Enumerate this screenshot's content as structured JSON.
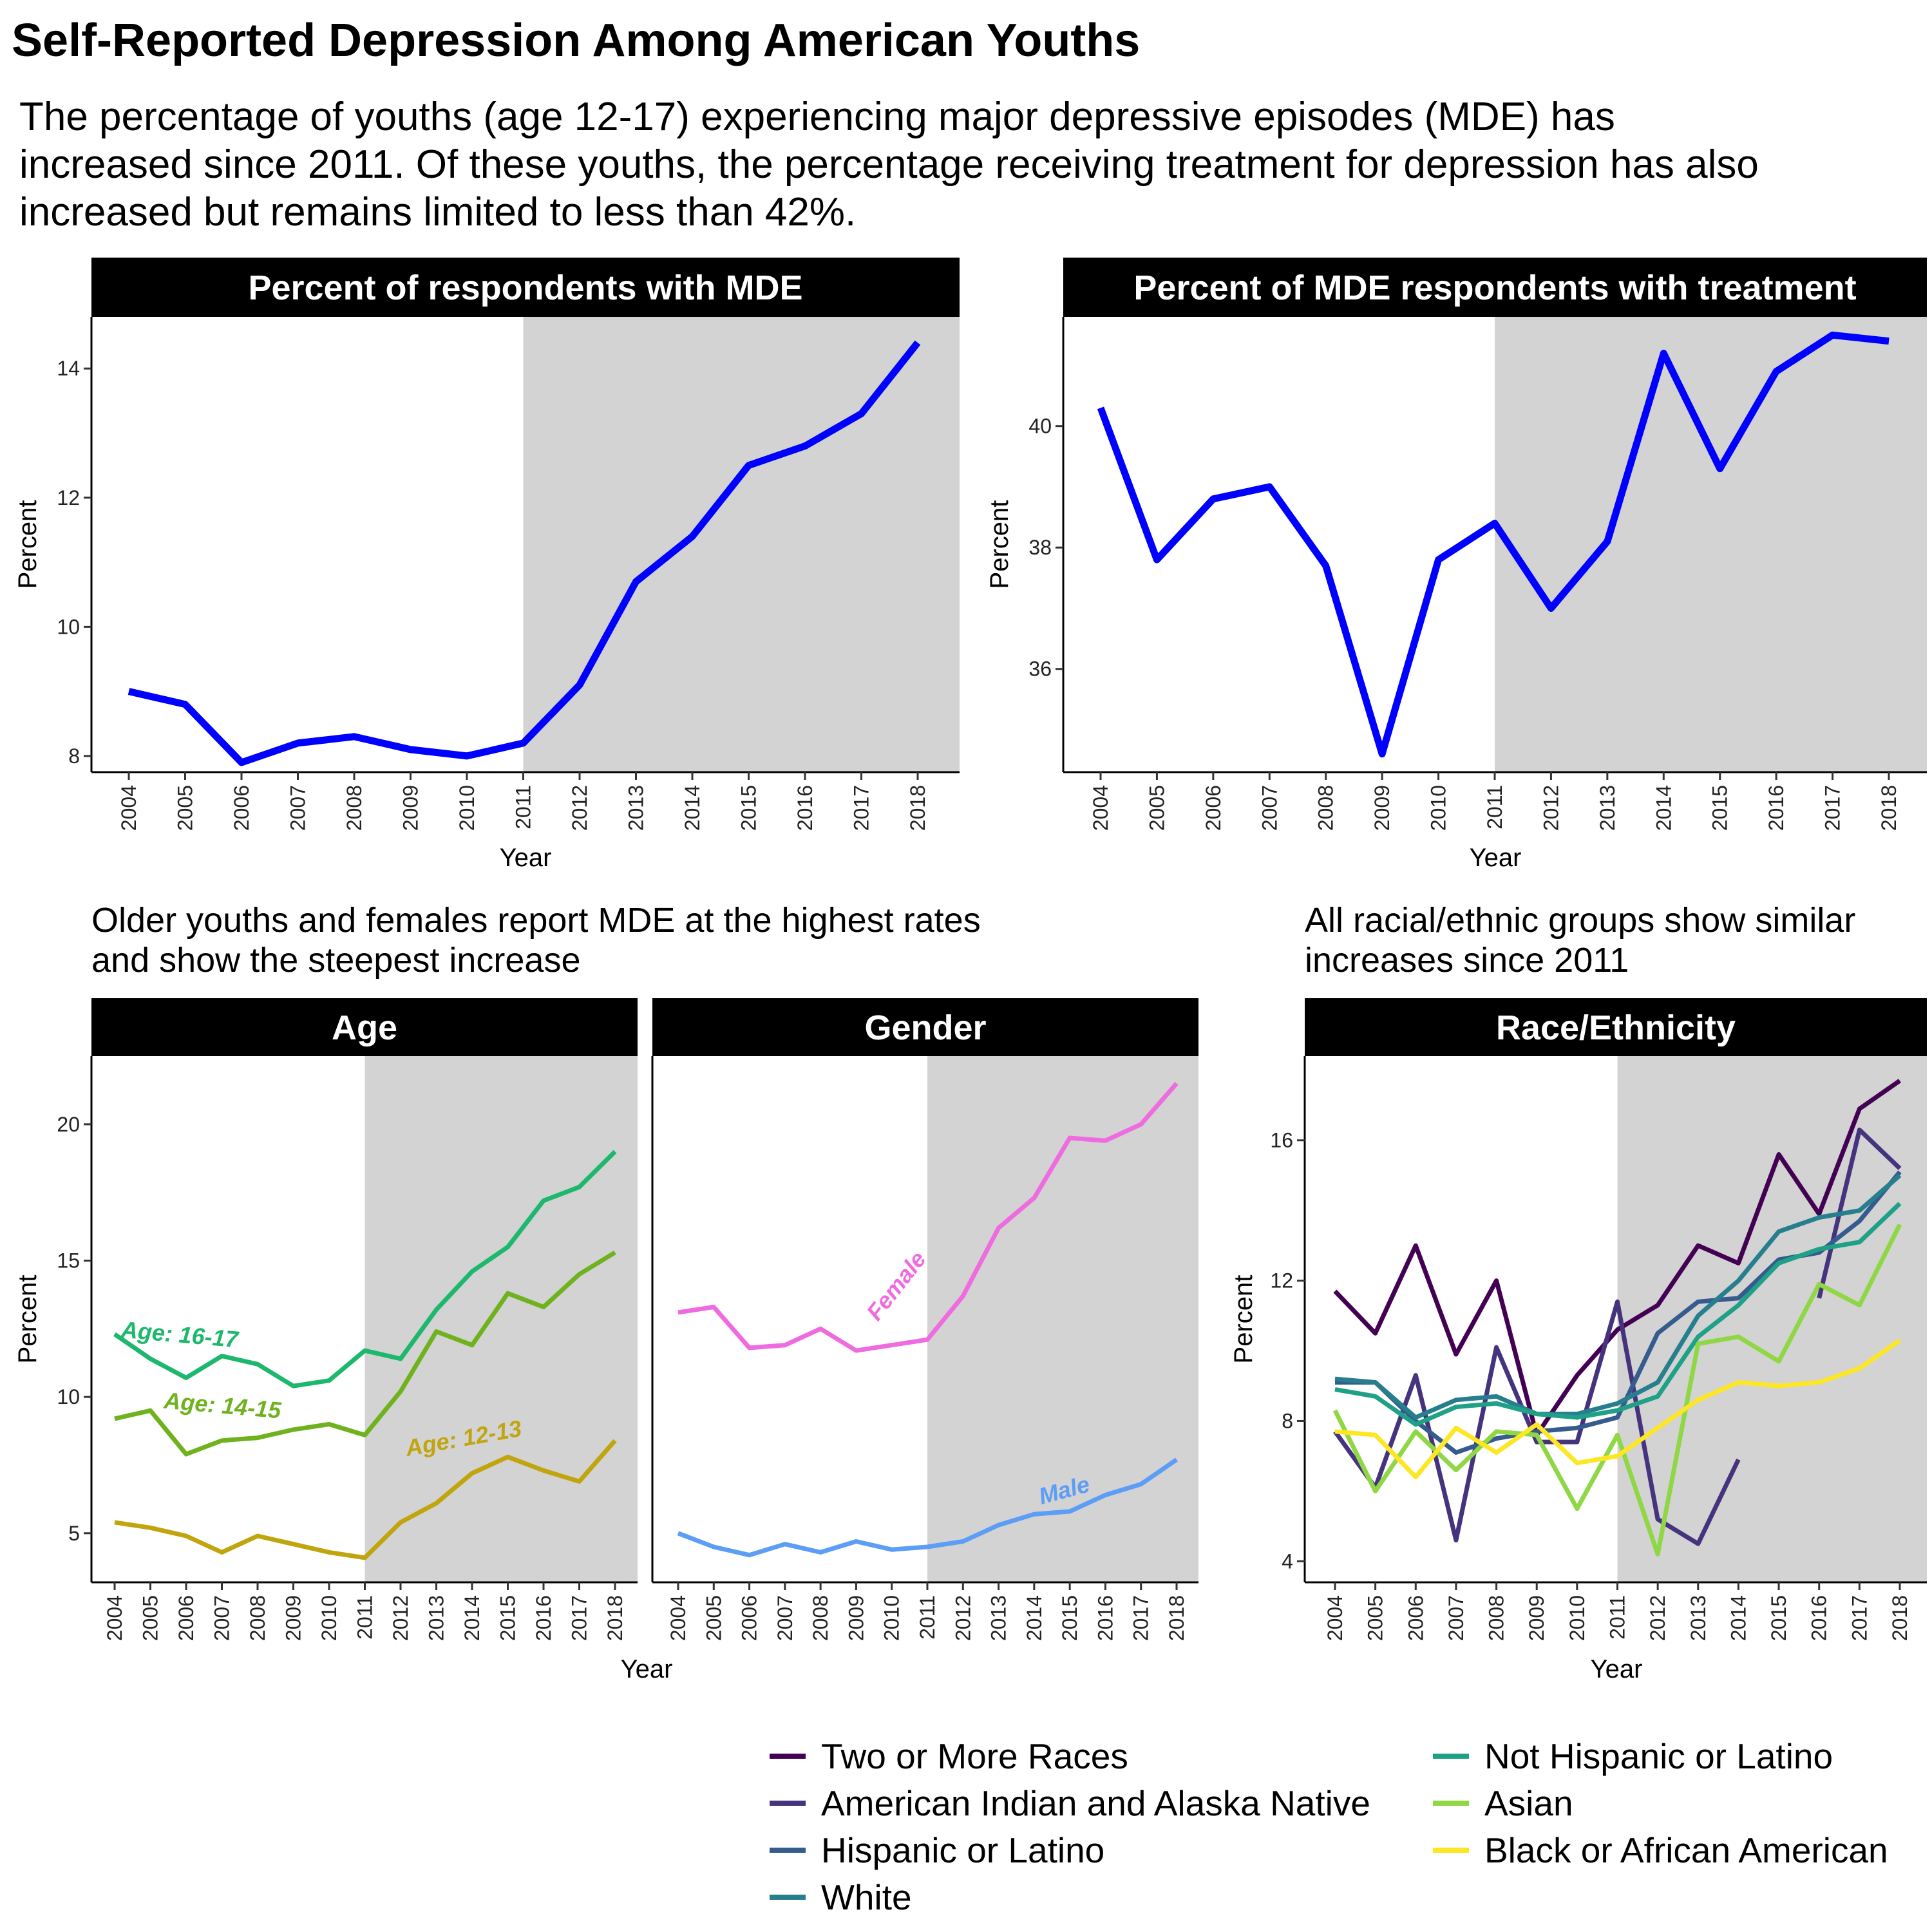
{
  "title": "Self-Reported Depression Among American Youths",
  "subtitle_lines": [
    "The percentage of youths (age 12-17) experiencing major depressive episodes (MDE) has",
    "increased since 2011. Of these youths, the percentage receiving treatment for depression has also",
    "increased but remains limited to less than 42%."
  ],
  "captions": {
    "bottom_left": [
      "Older youths and females report MDE at the highest rates",
      "and show the steepest increase"
    ],
    "bottom_right": [
      "All racial/ethnic groups show similar",
      "increases since 2011"
    ]
  },
  "colors": {
    "mde": "#0000ff",
    "shade": "#d3d3d3",
    "strip": "#000000",
    "age_16_17": "#1db86d",
    "age_14_15": "#6fb21e",
    "age_12_13": "#c0a50e",
    "female": "#ef6be0",
    "male": "#5c9df5"
  },
  "chart_data": [
    {
      "id": "mde",
      "type": "line",
      "title": "Percent of respondents with MDE",
      "xlabel": "Year",
      "ylabel": "Percent",
      "shade_from": 2011,
      "x": [
        2004,
        2005,
        2006,
        2007,
        2008,
        2009,
        2010,
        2011,
        2012,
        2013,
        2014,
        2015,
        2016,
        2017,
        2018
      ],
      "ylim": [
        7.75,
        14.8
      ],
      "yticks": [
        8,
        10,
        12,
        14
      ],
      "series": [
        {
          "color": "#0000ff",
          "values": [
            9.0,
            8.8,
            7.9,
            8.2,
            8.3,
            8.1,
            8.0,
            8.2,
            9.1,
            10.7,
            11.4,
            12.5,
            12.8,
            13.3,
            14.4
          ]
        }
      ]
    },
    {
      "id": "treatment",
      "type": "line",
      "title": "Percent of MDE respondents with treatment",
      "xlabel": "Year",
      "ylabel": "Percent",
      "shade_from": 2011,
      "x": [
        2004,
        2005,
        2006,
        2007,
        2008,
        2009,
        2010,
        2011,
        2012,
        2013,
        2014,
        2015,
        2016,
        2017,
        2018
      ],
      "ylim": [
        34.3,
        41.8
      ],
      "yticks": [
        36,
        38,
        40
      ],
      "series": [
        {
          "color": "#0000ff",
          "values": [
            40.3,
            37.8,
            38.8,
            39.0,
            37.7,
            34.6,
            37.8,
            38.4,
            37.0,
            38.1,
            41.2,
            39.3,
            40.9,
            41.5,
            41.4
          ]
        }
      ]
    },
    {
      "id": "age",
      "type": "line",
      "title": "Age",
      "ylabel": "Percent",
      "shade_from": 2011,
      "x": [
        2004,
        2005,
        2006,
        2007,
        2008,
        2009,
        2010,
        2011,
        2012,
        2013,
        2014,
        2015,
        2016,
        2017,
        2018
      ],
      "ylim": [
        3.2,
        22.5
      ],
      "yticks": [
        5,
        10,
        15,
        20
      ],
      "series": [
        {
          "name": "Age: 16-17",
          "color": "#1db86d",
          "values": [
            12.3,
            11.4,
            10.7,
            11.5,
            11.2,
            10.4,
            10.6,
            11.7,
            11.4,
            13.2,
            14.6,
            15.5,
            17.2,
            17.7,
            19.0
          ]
        },
        {
          "name": "Age: 14-15",
          "color": "#6fb21e",
          "values": [
            9.2,
            9.5,
            7.9,
            8.4,
            8.5,
            8.8,
            9.0,
            8.6,
            10.2,
            12.4,
            11.9,
            13.8,
            13.3,
            14.5,
            15.3
          ]
        },
        {
          "name": "Age: 12-13",
          "color": "#c0a50e",
          "values": [
            5.4,
            5.2,
            4.9,
            4.3,
            4.9,
            4.6,
            4.3,
            4.1,
            5.4,
            6.1,
            7.2,
            7.8,
            7.3,
            6.9,
            8.4
          ]
        }
      ]
    },
    {
      "id": "gender",
      "type": "line",
      "title": "Gender",
      "xlabel": "Year",
      "shade_from": 2011,
      "x": [
        2004,
        2005,
        2006,
        2007,
        2008,
        2009,
        2010,
        2011,
        2012,
        2013,
        2014,
        2015,
        2016,
        2017,
        2018
      ],
      "ylim": [
        3.2,
        22.5
      ],
      "series": [
        {
          "name": "Female",
          "color": "#ef6be0",
          "values": [
            13.1,
            13.3,
            11.8,
            11.9,
            12.5,
            11.7,
            11.9,
            12.1,
            13.7,
            16.2,
            17.3,
            19.5,
            19.4,
            20.0,
            21.5
          ]
        },
        {
          "name": "Male",
          "color": "#5c9df5",
          "values": [
            5.0,
            4.5,
            4.2,
            4.6,
            4.3,
            4.7,
            4.4,
            4.5,
            4.7,
            5.3,
            5.7,
            5.8,
            6.4,
            6.8,
            7.7
          ]
        }
      ]
    },
    {
      "id": "race",
      "type": "line",
      "title": "Race/Ethnicity",
      "xlabel": "Year",
      "ylabel": "Percent",
      "shade_from": 2011,
      "x": [
        2004,
        2005,
        2006,
        2007,
        2008,
        2009,
        2010,
        2011,
        2012,
        2013,
        2014,
        2015,
        2016,
        2017,
        2018
      ],
      "ylim": [
        3.4,
        18.4
      ],
      "yticks": [
        4,
        8,
        12,
        16
      ],
      "legend_position": "bottom",
      "series": [
        {
          "name": "Two or More Races",
          "color": "#440154",
          "values": [
            11.7,
            10.5,
            13.0,
            9.9,
            12.0,
            7.6,
            9.3,
            10.6,
            11.3,
            13.0,
            12.5,
            15.6,
            13.9,
            16.9,
            17.7
          ]
        },
        {
          "name": "American Indian and Alaska Native",
          "color": "#46337e",
          "values": [
            7.7,
            6.1,
            9.3,
            4.6,
            10.1,
            7.4,
            7.4,
            11.4,
            5.2,
            4.5,
            6.9,
            null,
            11.5,
            16.3,
            15.2
          ]
        },
        {
          "name": "Hispanic or Latino",
          "color": "#365c8d",
          "values": [
            9.1,
            9.1,
            8.0,
            7.1,
            7.5,
            7.7,
            7.8,
            8.1,
            10.5,
            11.4,
            11.5,
            12.6,
            12.8,
            13.7,
            15.1
          ]
        },
        {
          "name": "White",
          "color": "#277f8e",
          "values": [
            9.2,
            9.1,
            8.1,
            8.6,
            8.7,
            8.2,
            8.2,
            8.5,
            9.1,
            11.0,
            12.0,
            13.4,
            13.8,
            14.0,
            15.0
          ]
        },
        {
          "name": "Not Hispanic or Latino",
          "color": "#1fa187",
          "values": [
            8.9,
            8.7,
            7.9,
            8.4,
            8.5,
            8.2,
            8.1,
            8.3,
            8.7,
            10.4,
            11.3,
            12.5,
            12.9,
            13.1,
            14.2
          ]
        },
        {
          "name": "Asian",
          "color": "#8fd744",
          "values": [
            8.3,
            6.0,
            7.7,
            6.6,
            7.7,
            7.6,
            5.5,
            7.6,
            4.2,
            10.2,
            10.4,
            9.7,
            11.9,
            11.3,
            13.6
          ]
        },
        {
          "name": "Black or African American",
          "color": "#fde725",
          "values": [
            7.7,
            7.6,
            6.4,
            7.8,
            7.1,
            7.9,
            6.8,
            7.0,
            7.8,
            8.6,
            9.1,
            9.0,
            9.1,
            9.5,
            10.3
          ]
        }
      ]
    }
  ]
}
